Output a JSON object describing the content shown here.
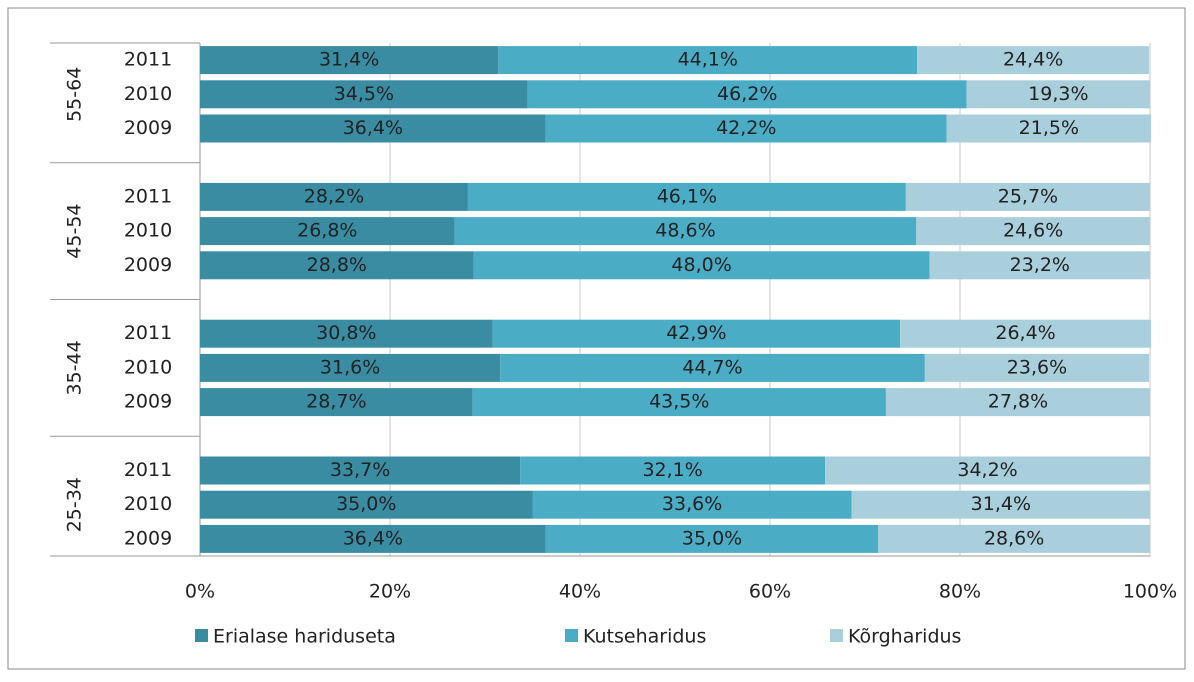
{
  "chart_data": {
    "type": "stacked_bar_horizontal",
    "groups": [
      "55-64",
      "45-54",
      "35-44",
      "25-34"
    ],
    "categories": [
      "2011",
      "2010",
      "2009",
      "2011",
      "2010",
      "2009",
      "2011",
      "2010",
      "2009",
      "2011",
      "2010",
      "2009"
    ],
    "series": [
      {
        "name": "Erialase hariduseta",
        "color": "#3a8ca3",
        "values": [
          31.4,
          34.5,
          36.4,
          28.2,
          26.8,
          28.8,
          30.8,
          31.6,
          28.7,
          33.7,
          35.0,
          36.4
        ],
        "value_labels": [
          "31,4%",
          "34,5%",
          "36,4%",
          "28,2%",
          "26,8%",
          "28,8%",
          "30,8%",
          "31,6%",
          "28,7%",
          "33,7%",
          "35,0%",
          "36,4%"
        ]
      },
      {
        "name": "Kutseharidus",
        "color": "#4bacc6",
        "values": [
          44.1,
          46.2,
          42.2,
          46.1,
          48.6,
          48.0,
          42.9,
          44.7,
          43.5,
          32.1,
          33.6,
          35.0
        ],
        "value_labels": [
          "44,1%",
          "46,2%",
          "42,2%",
          "46,1%",
          "48,6%",
          "48,0%",
          "42,9%",
          "44,7%",
          "43,5%",
          "32,1%",
          "33,6%",
          "35,0%"
        ]
      },
      {
        "name": "Kõrgharidus",
        "color": "#a9cfdc",
        "values": [
          24.4,
          19.3,
          21.5,
          25.7,
          24.6,
          23.2,
          26.4,
          23.6,
          27.8,
          34.2,
          31.4,
          28.6
        ],
        "value_labels": [
          "24,4%",
          "19,3%",
          "21,5%",
          "25,7%",
          "24,6%",
          "23,2%",
          "26,4%",
          "23,6%",
          "27,8%",
          "34,2%",
          "31,4%",
          "28,6%"
        ]
      }
    ],
    "xlim": [
      0,
      100
    ],
    "xticks": [
      {
        "value": 0,
        "label": "0%"
      },
      {
        "value": 20,
        "label": "20%"
      },
      {
        "value": 40,
        "label": "40%"
      },
      {
        "value": 60,
        "label": "60%"
      },
      {
        "value": 80,
        "label": "80%"
      },
      {
        "value": 100,
        "label": "100%"
      }
    ],
    "grid": true,
    "legend": "bottom"
  }
}
